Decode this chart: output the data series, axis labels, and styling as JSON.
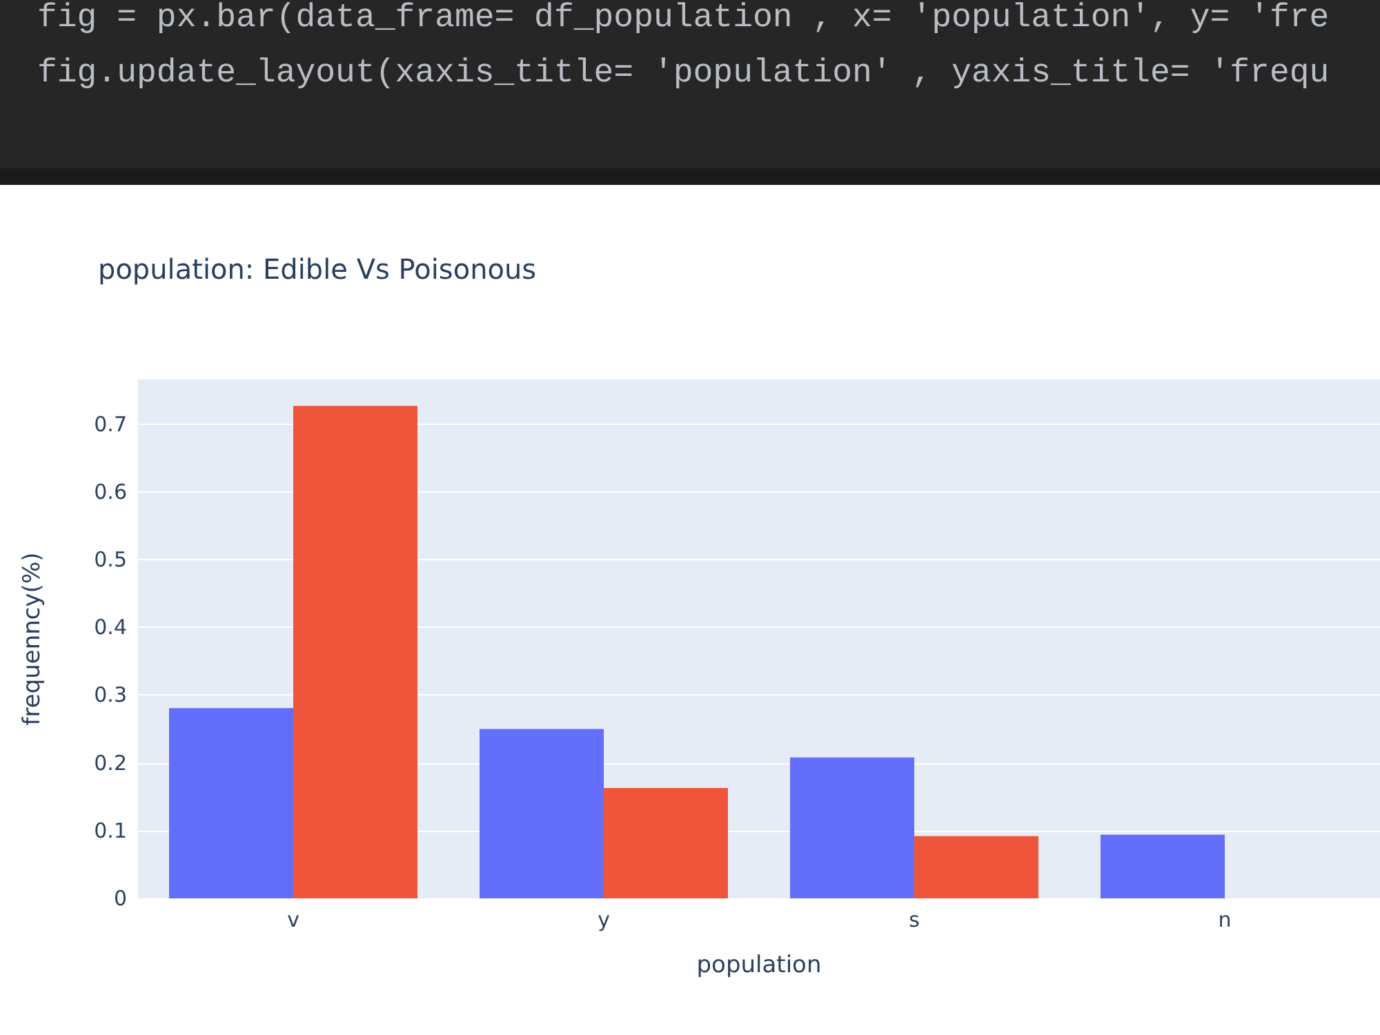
{
  "chart_data": {
    "type": "bar",
    "title": "population: Edible Vs Poisonous",
    "annotations": [
      "fig = px.bar(data_frame= df_population , x= 'population', y= 'fre",
      "fig.update_layout(xaxis_title= 'population' , yaxis_title= 'frequ"
    ],
    "xlabel": "population",
    "ylabel": "frequenncy(%)",
    "categories": [
      "v",
      "y",
      "s",
      "n"
    ],
    "series": [
      {
        "color": "#636efa",
        "values": [
          0.281,
          0.25,
          0.208,
          0.094
        ]
      },
      {
        "color": "#ef553b",
        "values": [
          0.727,
          0.163,
          0.092,
          null
        ]
      }
    ],
    "ylim": [
      0,
      0.766
    ],
    "yticks": [
      0,
      0.1,
      0.2,
      0.3,
      0.4,
      0.5,
      0.6,
      0.7
    ],
    "grid": "y"
  }
}
